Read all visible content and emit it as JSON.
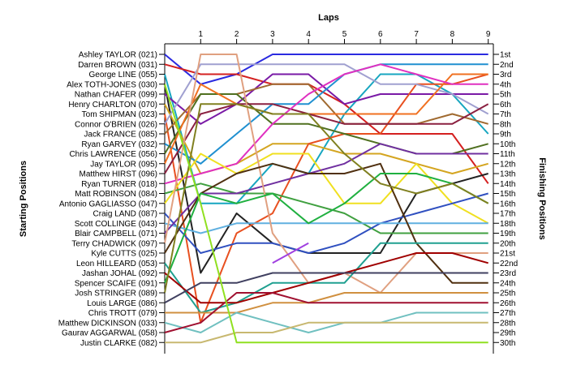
{
  "chart_data": {
    "type": "line",
    "top_axis_title": "Laps",
    "left_axis_title": "Starting Positions",
    "right_axis_title": "Finishing Positions",
    "laps": [
      0,
      1,
      2,
      3,
      4,
      5,
      6,
      7,
      8,
      9
    ],
    "lap_tick_labels": [
      "1",
      "2",
      "3",
      "4",
      "5",
      "6",
      "7",
      "8",
      "9"
    ],
    "position_labels": [
      "1st",
      "2nd",
      "3rd",
      "4th",
      "5th",
      "6th",
      "7th",
      "8th",
      "9th",
      "10th",
      "11th",
      "12th",
      "13th",
      "14th",
      "15th",
      "16th",
      "17th",
      "18th",
      "19th",
      "20th",
      "21st",
      "22nd",
      "23rd",
      "24th",
      "25th",
      "26th",
      "27th",
      "28th",
      "29th",
      "30th"
    ],
    "grid": false,
    "series": [
      {
        "name": "Ashley TAYLOR (021)",
        "color": "#2a2ae0",
        "positions": [
          1,
          4,
          3,
          1,
          1,
          1,
          1,
          1,
          1,
          1
        ]
      },
      {
        "name": "Darren BROWN (031)",
        "color": "#d42020",
        "positions": [
          2,
          3,
          3,
          4,
          4,
          6,
          9,
          9,
          9,
          14
        ]
      },
      {
        "name": "George LINE (055)",
        "color": "#17a6c0",
        "positions": [
          3,
          16,
          16,
          12,
          13,
          7,
          3,
          3,
          5,
          9
        ]
      },
      {
        "name": "Alex TOTH-JONES (030)",
        "color": "#222222",
        "positions": [
          4,
          23,
          17,
          20,
          21,
          21,
          21,
          15,
          14,
          13
        ]
      },
      {
        "name": "Nathan CHAFER (099)",
        "color": "#7a1aa6",
        "positions": [
          5,
          8,
          6,
          3,
          3,
          6,
          5,
          5,
          5,
          5
        ]
      },
      {
        "name": "Henry CHARLTON (070)",
        "color": "#d4a520",
        "positions": [
          6,
          13,
          12,
          10,
          10,
          11,
          11,
          12,
          13,
          12
        ]
      },
      {
        "name": "Tom SHIPMAN (023)",
        "color": "#e85020",
        "positions": [
          7,
          28,
          19,
          17,
          10,
          9,
          9,
          4,
          4,
          3
        ]
      },
      {
        "name": "Connor O'BRIEN (026)",
        "color": "#a0a0d0",
        "positions": [
          8,
          2,
          2,
          2,
          2,
          2,
          4,
          4,
          5,
          7
        ]
      },
      {
        "name": "Jack FRANCE (085)",
        "color": "#a06a30",
        "positions": [
          9,
          5,
          5,
          4,
          4,
          8,
          8,
          8,
          7,
          8
        ]
      },
      {
        "name": "Ryan GARVEY (032)",
        "color": "#2090d0",
        "positions": [
          10,
          12,
          9,
          6,
          6,
          3,
          2,
          2,
          2,
          2
        ]
      },
      {
        "name": "Chris LAWRENCE (056)",
        "color": "#507020",
        "positions": [
          11,
          5,
          5,
          8,
          8,
          9,
          10,
          11,
          11,
          10
        ]
      },
      {
        "name": "Jay TAYLOR (095)",
        "color": "#f07020",
        "positions": [
          12,
          4,
          6,
          7,
          7,
          7,
          7,
          7,
          3,
          3
        ]
      },
      {
        "name": "Matthew HIRST (096)",
        "color": "#8a2040",
        "positions": [
          13,
          7,
          6,
          6,
          7,
          8,
          8,
          8,
          8,
          6
        ]
      },
      {
        "name": "Ryan TURNER (018)",
        "color": "#e030c0",
        "positions": [
          14,
          13,
          12,
          8,
          5,
          3,
          2,
          3,
          4,
          4
        ]
      },
      {
        "name": "Matt ROBINSON (084)",
        "color": "#40a040",
        "positions": [
          15,
          14,
          15,
          15,
          16,
          17,
          19,
          19,
          19,
          19
        ]
      },
      {
        "name": "Antonio GAGLIASSO (047)",
        "color": "#f0e020",
        "positions": [
          16,
          11,
          13,
          11,
          11,
          16,
          16,
          12,
          16,
          18
        ]
      },
      {
        "name": "Craig LAND (087)",
        "color": "#3050c0",
        "positions": [
          17,
          21,
          20,
          20,
          21,
          20,
          18,
          17,
          16,
          15
        ]
      },
      {
        "name": "Scott COLLINGE (043)",
        "color": "#60b0e0",
        "positions": [
          18,
          19,
          18,
          18,
          18,
          18,
          18,
          18,
          18,
          18
        ]
      },
      {
        "name": "Blair CAMPBELL (071)",
        "color": "#7030a0",
        "positions": [
          19,
          15,
          15,
          14,
          13,
          12,
          10,
          11,
          11,
          11
        ]
      },
      {
        "name": "Terry CHADWICK (097)",
        "color": "#e0a080",
        "positions": [
          20,
          1,
          1,
          19,
          24,
          23,
          25,
          21,
          21,
          21
        ]
      },
      {
        "name": "Kyle CUTTS (025)",
        "color": "#503010",
        "positions": [
          21,
          15,
          13,
          12,
          13,
          13,
          12,
          20,
          24,
          24
        ]
      },
      {
        "name": "Leon HILLEARD (053)",
        "color": "#20a090",
        "positions": [
          22,
          27,
          26,
          24,
          24,
          24,
          20,
          20,
          20,
          20
        ]
      },
      {
        "name": "Jashan JOHAL (092)",
        "color": "#a00000",
        "positions": [
          23,
          26,
          26,
          25,
          24,
          23,
          22,
          21,
          21,
          22
        ]
      },
      {
        "name": "Spencer SCAIFE (091)",
        "color": "#20b040",
        "positions": [
          24,
          15,
          16,
          15,
          18,
          16,
          13,
          13,
          14,
          16
        ]
      },
      {
        "name": "Josh STRINGER (089)",
        "color": "#808020",
        "positions": [
          25,
          6,
          6,
          7,
          7,
          11,
          14,
          15,
          14,
          16
        ]
      },
      {
        "name": "Louis LARGE (086)",
        "color": "#404060",
        "positions": [
          26,
          24,
          24,
          23,
          23,
          23,
          23,
          23,
          23,
          23
        ]
      },
      {
        "name": "Chris TROTT (079)",
        "color": "#d09040",
        "positions": [
          27,
          27,
          27,
          26,
          26,
          25,
          25,
          25,
          25,
          25
        ]
      },
      {
        "name": "Matthew DICKINSON (033)",
        "color": "#70c0c0",
        "positions": [
          28,
          29,
          27,
          28,
          29,
          28,
          28,
          27,
          27,
          27
        ]
      },
      {
        "name": "Gaurav AGGARWAL (058)",
        "color": "#a01030",
        "positions": [
          29,
          28,
          25,
          25,
          26,
          26,
          26,
          26,
          26,
          26
        ]
      },
      {
        "name": "Justin CLARKE (082)",
        "color": "#c8b870",
        "positions": [
          30,
          30,
          29,
          29,
          28,
          28,
          28,
          28,
          28,
          28
        ]
      },
      {
        "name": "",
        "color": "#90e020",
        "positions": [
          4,
          16,
          30,
          30,
          30,
          30,
          30,
          30,
          30,
          30
        ]
      },
      {
        "name": "",
        "color": "#a040e0",
        "positions": [
          null,
          null,
          null,
          null,
          21,
          null,
          null,
          null,
          null,
          null
        ]
      }
    ]
  }
}
